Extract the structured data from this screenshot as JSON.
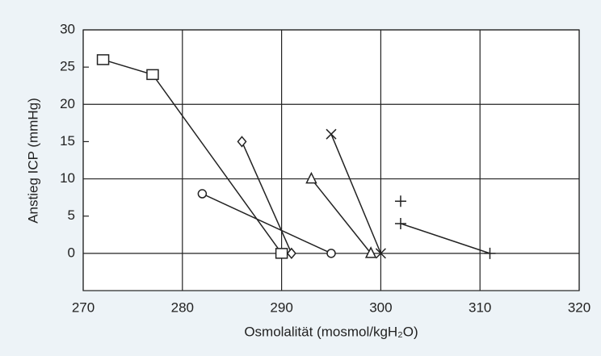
{
  "chart_data": {
    "type": "line",
    "xlabel": "Osmolalität (mosmol/kgH₂O)",
    "ylabel": "Anstieg ICP (mmHg)",
    "xlim": [
      270,
      320
    ],
    "xticks": [
      270,
      280,
      290,
      300,
      310,
      320
    ],
    "ylim": [
      -5,
      30
    ],
    "yticks": [
      0,
      5,
      10,
      15,
      20,
      25,
      30
    ],
    "grid": true,
    "series": [
      {
        "marker": "square",
        "color": "#222222",
        "x": [
          272,
          277,
          290
        ],
        "values": [
          26,
          24,
          0
        ]
      },
      {
        "marker": "diamond",
        "color": "#222222",
        "x": [
          286,
          291
        ],
        "values": [
          15,
          0
        ]
      },
      {
        "marker": "circle",
        "color": "#222222",
        "x": [
          282,
          295
        ],
        "values": [
          8,
          0
        ]
      },
      {
        "marker": "triangle",
        "color": "#222222",
        "x": [
          293,
          299
        ],
        "values": [
          10,
          0
        ]
      },
      {
        "marker": "cross",
        "color": "#222222",
        "x": [
          295,
          300
        ],
        "values": [
          16,
          0
        ]
      },
      {
        "marker": "plus",
        "color": "#222222",
        "x": [
          302,
          302,
          302,
          311
        ],
        "values": [
          7,
          null,
          4,
          0
        ]
      }
    ]
  }
}
